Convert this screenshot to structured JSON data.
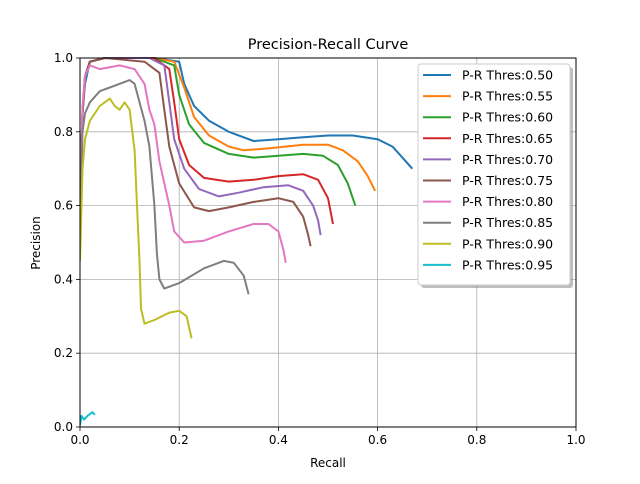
{
  "chart_data": {
    "type": "line",
    "title": "Precision-Recall Curve",
    "xlabel": "Recall",
    "ylabel": "Precision",
    "xlim": [
      0,
      1
    ],
    "ylim": [
      0,
      1
    ],
    "xticks": [
      "0.0",
      "0.2",
      "0.4",
      "0.6",
      "0.8",
      "1.0"
    ],
    "yticks": [
      "0.0",
      "0.2",
      "0.4",
      "0.6",
      "0.8",
      "1.0"
    ],
    "grid": true,
    "legend_position": "top-right",
    "series": [
      {
        "name": "P-R Thres:0.50",
        "color": "#1f77b4",
        "points": [
          [
            0.0,
            0.6
          ],
          [
            0.005,
            0.85
          ],
          [
            0.01,
            0.93
          ],
          [
            0.02,
            0.99
          ],
          [
            0.05,
            1.0
          ],
          [
            0.15,
            1.0
          ],
          [
            0.2,
            0.99
          ],
          [
            0.21,
            0.93
          ],
          [
            0.23,
            0.87
          ],
          [
            0.26,
            0.83
          ],
          [
            0.3,
            0.8
          ],
          [
            0.35,
            0.775
          ],
          [
            0.4,
            0.78
          ],
          [
            0.45,
            0.785
          ],
          [
            0.5,
            0.79
          ],
          [
            0.55,
            0.79
          ],
          [
            0.6,
            0.78
          ],
          [
            0.63,
            0.76
          ],
          [
            0.65,
            0.73
          ],
          [
            0.67,
            0.7
          ]
        ]
      },
      {
        "name": "P-R Thres:0.55",
        "color": "#ff7f0e",
        "points": [
          [
            0.0,
            0.6
          ],
          [
            0.005,
            0.85
          ],
          [
            0.01,
            0.95
          ],
          [
            0.02,
            0.99
          ],
          [
            0.05,
            1.0
          ],
          [
            0.15,
            1.0
          ],
          [
            0.19,
            0.99
          ],
          [
            0.21,
            0.92
          ],
          [
            0.23,
            0.84
          ],
          [
            0.26,
            0.79
          ],
          [
            0.3,
            0.76
          ],
          [
            0.33,
            0.75
          ],
          [
            0.38,
            0.755
          ],
          [
            0.45,
            0.765
          ],
          [
            0.5,
            0.765
          ],
          [
            0.53,
            0.75
          ],
          [
            0.56,
            0.72
          ],
          [
            0.58,
            0.68
          ],
          [
            0.595,
            0.64
          ]
        ]
      },
      {
        "name": "P-R Thres:0.60",
        "color": "#2ca02c",
        "points": [
          [
            0.0,
            0.6
          ],
          [
            0.005,
            0.85
          ],
          [
            0.01,
            0.95
          ],
          [
            0.02,
            0.99
          ],
          [
            0.05,
            1.0
          ],
          [
            0.15,
            1.0
          ],
          [
            0.19,
            0.98
          ],
          [
            0.2,
            0.9
          ],
          [
            0.22,
            0.82
          ],
          [
            0.25,
            0.77
          ],
          [
            0.3,
            0.74
          ],
          [
            0.35,
            0.73
          ],
          [
            0.4,
            0.735
          ],
          [
            0.45,
            0.74
          ],
          [
            0.49,
            0.735
          ],
          [
            0.52,
            0.71
          ],
          [
            0.54,
            0.66
          ],
          [
            0.555,
            0.6
          ]
        ]
      },
      {
        "name": "P-R Thres:0.65",
        "color": "#d62728",
        "points": [
          [
            0.0,
            0.6
          ],
          [
            0.005,
            0.85
          ],
          [
            0.01,
            0.95
          ],
          [
            0.02,
            0.99
          ],
          [
            0.05,
            1.0
          ],
          [
            0.15,
            1.0
          ],
          [
            0.18,
            0.97
          ],
          [
            0.19,
            0.88
          ],
          [
            0.2,
            0.78
          ],
          [
            0.22,
            0.71
          ],
          [
            0.25,
            0.675
          ],
          [
            0.3,
            0.665
          ],
          [
            0.35,
            0.67
          ],
          [
            0.4,
            0.68
          ],
          [
            0.45,
            0.685
          ],
          [
            0.48,
            0.67
          ],
          [
            0.5,
            0.62
          ],
          [
            0.51,
            0.55
          ]
        ]
      },
      {
        "name": "P-R Thres:0.70",
        "color": "#9467bd",
        "points": [
          [
            0.0,
            0.6
          ],
          [
            0.005,
            0.85
          ],
          [
            0.01,
            0.95
          ],
          [
            0.02,
            0.99
          ],
          [
            0.05,
            1.0
          ],
          [
            0.14,
            1.0
          ],
          [
            0.17,
            0.98
          ],
          [
            0.18,
            0.88
          ],
          [
            0.19,
            0.78
          ],
          [
            0.21,
            0.7
          ],
          [
            0.24,
            0.645
          ],
          [
            0.28,
            0.625
          ],
          [
            0.32,
            0.635
          ],
          [
            0.37,
            0.65
          ],
          [
            0.42,
            0.655
          ],
          [
            0.45,
            0.64
          ],
          [
            0.47,
            0.6
          ],
          [
            0.48,
            0.56
          ],
          [
            0.485,
            0.52
          ]
        ]
      },
      {
        "name": "P-R Thres:0.75",
        "color": "#8c564b",
        "points": [
          [
            0.0,
            0.6
          ],
          [
            0.005,
            0.85
          ],
          [
            0.01,
            0.95
          ],
          [
            0.02,
            0.99
          ],
          [
            0.05,
            1.0
          ],
          [
            0.13,
            0.99
          ],
          [
            0.16,
            0.96
          ],
          [
            0.17,
            0.86
          ],
          [
            0.18,
            0.76
          ],
          [
            0.2,
            0.66
          ],
          [
            0.23,
            0.595
          ],
          [
            0.26,
            0.585
          ],
          [
            0.3,
            0.595
          ],
          [
            0.35,
            0.61
          ],
          [
            0.4,
            0.62
          ],
          [
            0.43,
            0.61
          ],
          [
            0.45,
            0.57
          ],
          [
            0.46,
            0.52
          ],
          [
            0.465,
            0.49
          ]
        ]
      },
      {
        "name": "P-R Thres:0.80",
        "color": "#e377c2",
        "points": [
          [
            0.0,
            0.6
          ],
          [
            0.005,
            0.87
          ],
          [
            0.01,
            0.95
          ],
          [
            0.02,
            0.98
          ],
          [
            0.04,
            0.97
          ],
          [
            0.08,
            0.98
          ],
          [
            0.11,
            0.97
          ],
          [
            0.13,
            0.93
          ],
          [
            0.14,
            0.86
          ],
          [
            0.15,
            0.82
          ],
          [
            0.16,
            0.72
          ],
          [
            0.18,
            0.6
          ],
          [
            0.19,
            0.53
          ],
          [
            0.21,
            0.5
          ],
          [
            0.25,
            0.505
          ],
          [
            0.3,
            0.53
          ],
          [
            0.35,
            0.55
          ],
          [
            0.38,
            0.55
          ],
          [
            0.4,
            0.53
          ],
          [
            0.41,
            0.48
          ],
          [
            0.415,
            0.445
          ]
        ]
      },
      {
        "name": "P-R Thres:0.85",
        "color": "#7f7f7f",
        "points": [
          [
            0.0,
            0.55
          ],
          [
            0.005,
            0.8
          ],
          [
            0.01,
            0.85
          ],
          [
            0.02,
            0.88
          ],
          [
            0.04,
            0.91
          ],
          [
            0.06,
            0.92
          ],
          [
            0.08,
            0.93
          ],
          [
            0.1,
            0.94
          ],
          [
            0.11,
            0.93
          ],
          [
            0.12,
            0.88
          ],
          [
            0.13,
            0.83
          ],
          [
            0.14,
            0.76
          ],
          [
            0.15,
            0.6
          ],
          [
            0.155,
            0.47
          ],
          [
            0.16,
            0.4
          ],
          [
            0.17,
            0.375
          ],
          [
            0.2,
            0.39
          ],
          [
            0.25,
            0.43
          ],
          [
            0.29,
            0.45
          ],
          [
            0.31,
            0.445
          ],
          [
            0.33,
            0.41
          ],
          [
            0.34,
            0.36
          ]
        ]
      },
      {
        "name": "P-R Thres:0.90",
        "color": "#bcbd22",
        "points": [
          [
            0.0,
            0.45
          ],
          [
            0.005,
            0.7
          ],
          [
            0.01,
            0.78
          ],
          [
            0.02,
            0.83
          ],
          [
            0.04,
            0.87
          ],
          [
            0.05,
            0.88
          ],
          [
            0.06,
            0.89
          ],
          [
            0.07,
            0.87
          ],
          [
            0.08,
            0.86
          ],
          [
            0.09,
            0.88
          ],
          [
            0.1,
            0.86
          ],
          [
            0.11,
            0.75
          ],
          [
            0.115,
            0.6
          ],
          [
            0.12,
            0.45
          ],
          [
            0.123,
            0.32
          ],
          [
            0.13,
            0.28
          ],
          [
            0.15,
            0.29
          ],
          [
            0.18,
            0.31
          ],
          [
            0.2,
            0.315
          ],
          [
            0.215,
            0.3
          ],
          [
            0.225,
            0.24
          ]
        ]
      },
      {
        "name": "P-R Thres:0.95",
        "color": "#17becf",
        "points": [
          [
            0.0,
            0.005
          ],
          [
            0.003,
            0.03
          ],
          [
            0.008,
            0.02
          ],
          [
            0.015,
            0.03
          ],
          [
            0.02,
            0.035
          ],
          [
            0.025,
            0.04
          ],
          [
            0.03,
            0.033
          ]
        ]
      }
    ]
  }
}
